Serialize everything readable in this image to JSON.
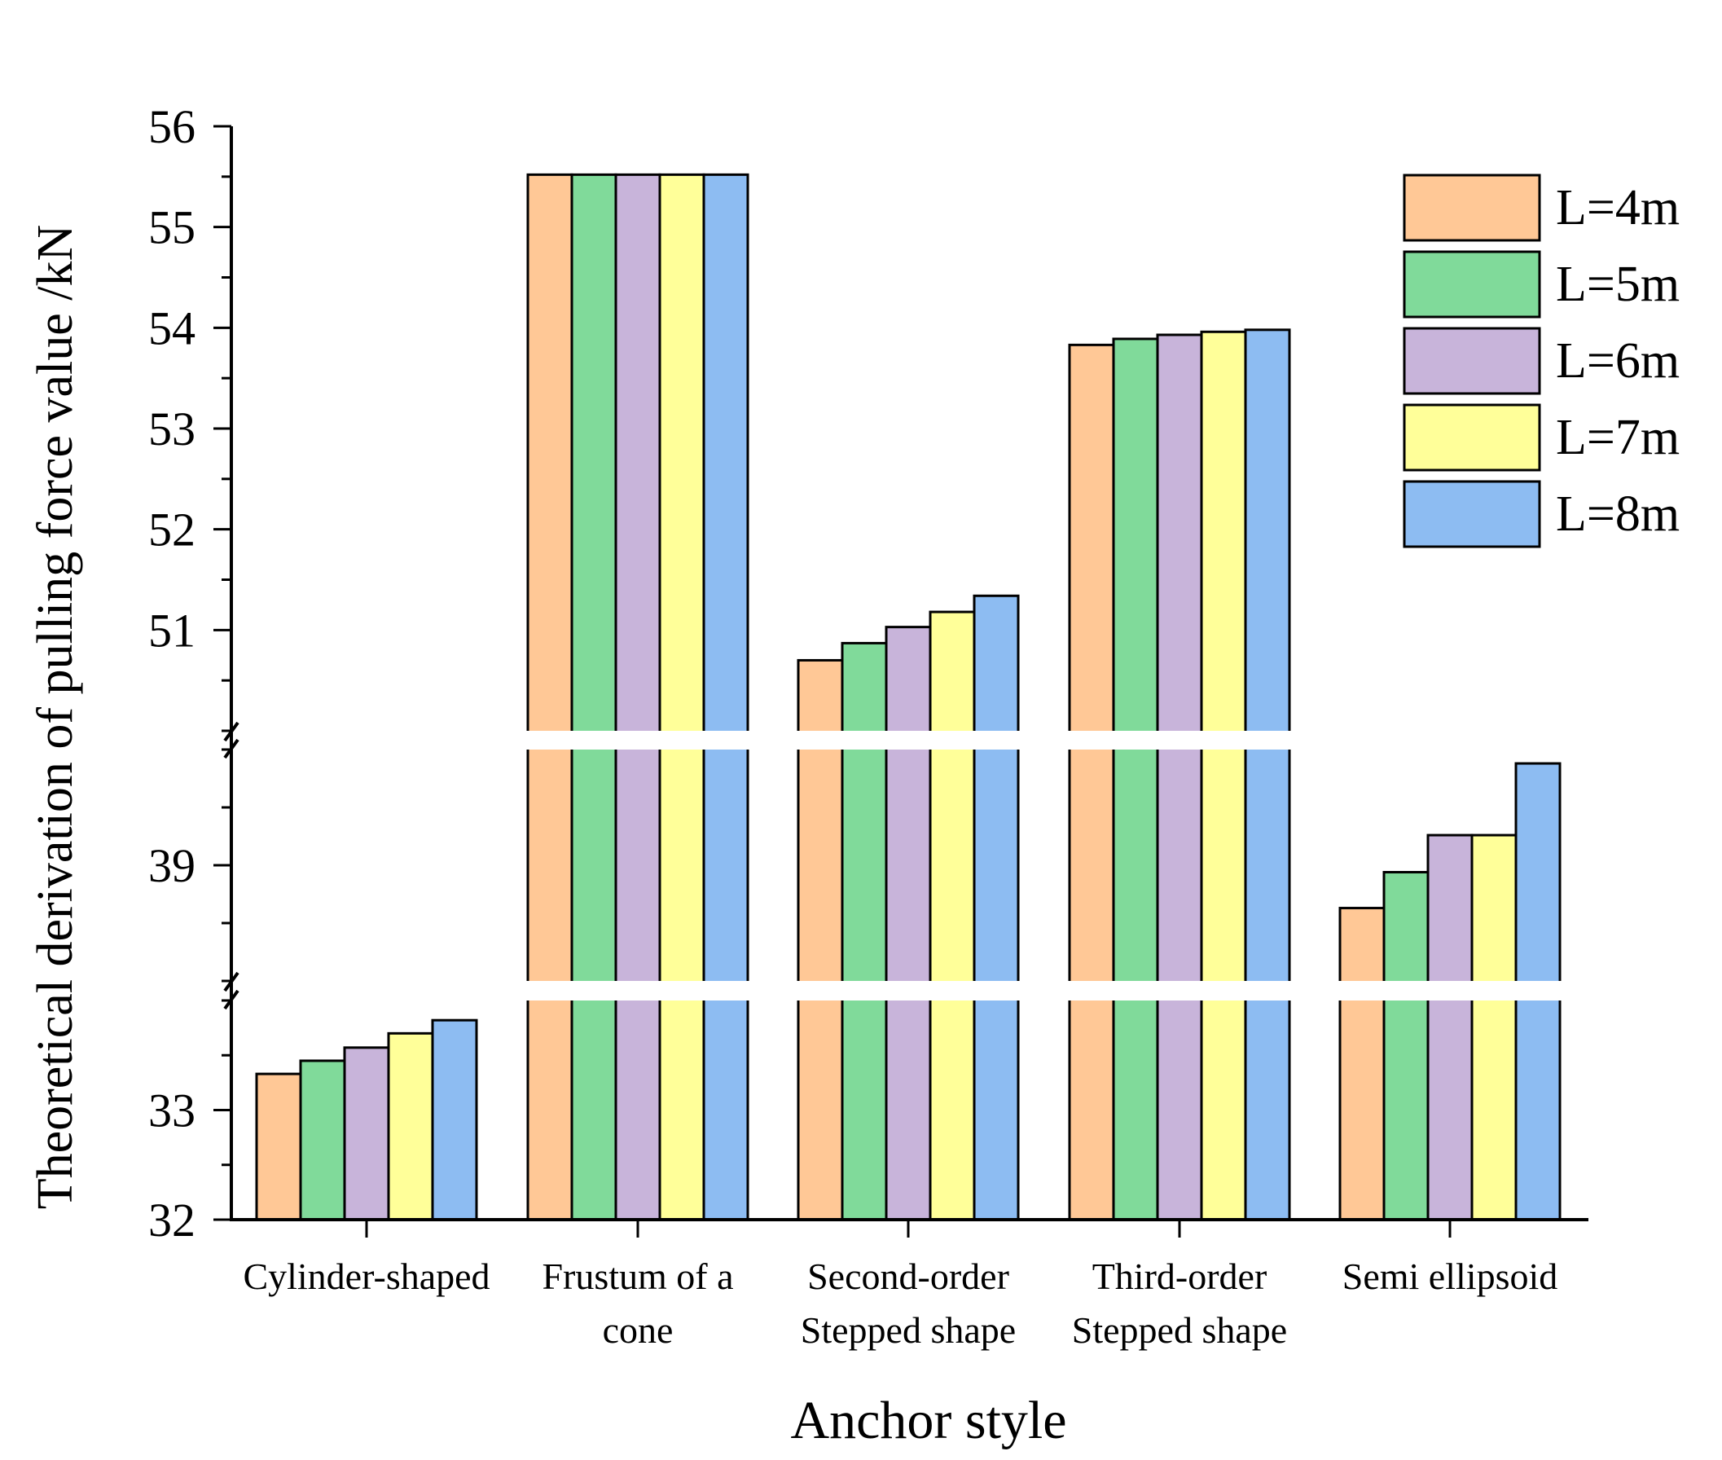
{
  "chart_data": {
    "type": "bar",
    "title": "",
    "xlabel": "Anchor style",
    "ylabel": "Theoretical derivation of pulling force value /kN",
    "categories": [
      [
        "Cylinder-shaped"
      ],
      [
        "Frustum of a",
        "cone"
      ],
      [
        "Second-order",
        "Stepped shape"
      ],
      [
        "Third-order",
        "Stepped shape"
      ],
      [
        "Semi ellipsoid"
      ]
    ],
    "series": [
      {
        "name": "L=4m",
        "color": "#FFC896",
        "values": [
          33.33,
          55.52,
          50.7,
          53.83,
          38.63
        ]
      },
      {
        "name": "L=5m",
        "color": "#80DA9A",
        "values": [
          33.45,
          55.52,
          50.87,
          53.89,
          38.94
        ]
      },
      {
        "name": "L=6m",
        "color": "#C8B4DA",
        "values": [
          33.57,
          55.52,
          51.03,
          53.93,
          39.26
        ]
      },
      {
        "name": "L=7m",
        "color": "#FFFF99",
        "values": [
          33.7,
          55.52,
          51.18,
          53.96,
          39.26
        ]
      },
      {
        "name": "L=8m",
        "color": "#8DBCF2",
        "values": [
          33.82,
          55.52,
          51.34,
          53.98,
          39.88
        ]
      }
    ],
    "axis_breaks": [
      {
        "segment": "lower",
        "range": [
          32,
          34
        ],
        "ticks": [
          "32",
          "33"
        ]
      },
      {
        "segment": "middle",
        "range": [
          38,
          40
        ],
        "ticks": [
          "39"
        ]
      },
      {
        "segment": "upper",
        "range": [
          50,
          56
        ],
        "ticks": [
          "51",
          "52",
          "53",
          "54",
          "55",
          "56"
        ]
      }
    ],
    "legend_position": "top-right",
    "grid": false
  }
}
